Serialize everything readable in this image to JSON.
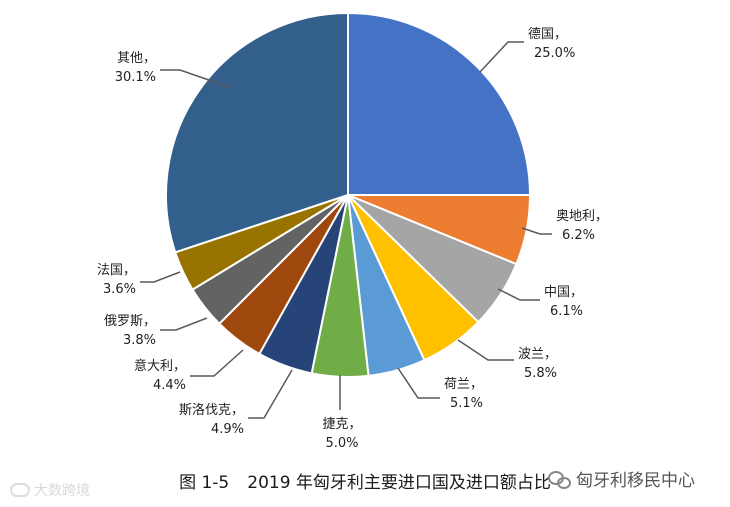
{
  "chart_data": {
    "type": "pie",
    "title": "2019 年匈牙利主要进口国及进口额占比",
    "figure_number": "图 1-5",
    "series": [
      {
        "category": "德国",
        "value": 25.0,
        "label": "25.0%",
        "color": "#4472C4"
      },
      {
        "category": "奥地利",
        "value": 6.2,
        "label": "6.2%",
        "color": "#ED7D31"
      },
      {
        "category": "中国",
        "value": 6.1,
        "label": "6.1%",
        "color": "#A5A5A5"
      },
      {
        "category": "波兰",
        "value": 5.8,
        "label": "5.8%",
        "color": "#FFC000"
      },
      {
        "category": "荷兰",
        "value": 5.1,
        "label": "5.1%",
        "color": "#5B9BD5"
      },
      {
        "category": "捷克",
        "value": 5.0,
        "label": "5.0%",
        "color": "#70AD47"
      },
      {
        "category": "斯洛伐克",
        "value": 4.9,
        "label": "4.9%",
        "color": "#264478"
      },
      {
        "category": "意大利",
        "value": 4.4,
        "label": "4.4%",
        "color": "#9E480E"
      },
      {
        "category": "俄罗斯",
        "value": 3.8,
        "label": "3.8%",
        "color": "#636363"
      },
      {
        "category": "法国",
        "value": 3.6,
        "label": "3.6%",
        "color": "#997300"
      },
      {
        "category": "其他",
        "value": 30.1,
        "label": "30.1%",
        "color": "#335F8C"
      }
    ]
  },
  "watermarks": {
    "left": "大数跨境",
    "right": "匈牙利移民中心"
  }
}
